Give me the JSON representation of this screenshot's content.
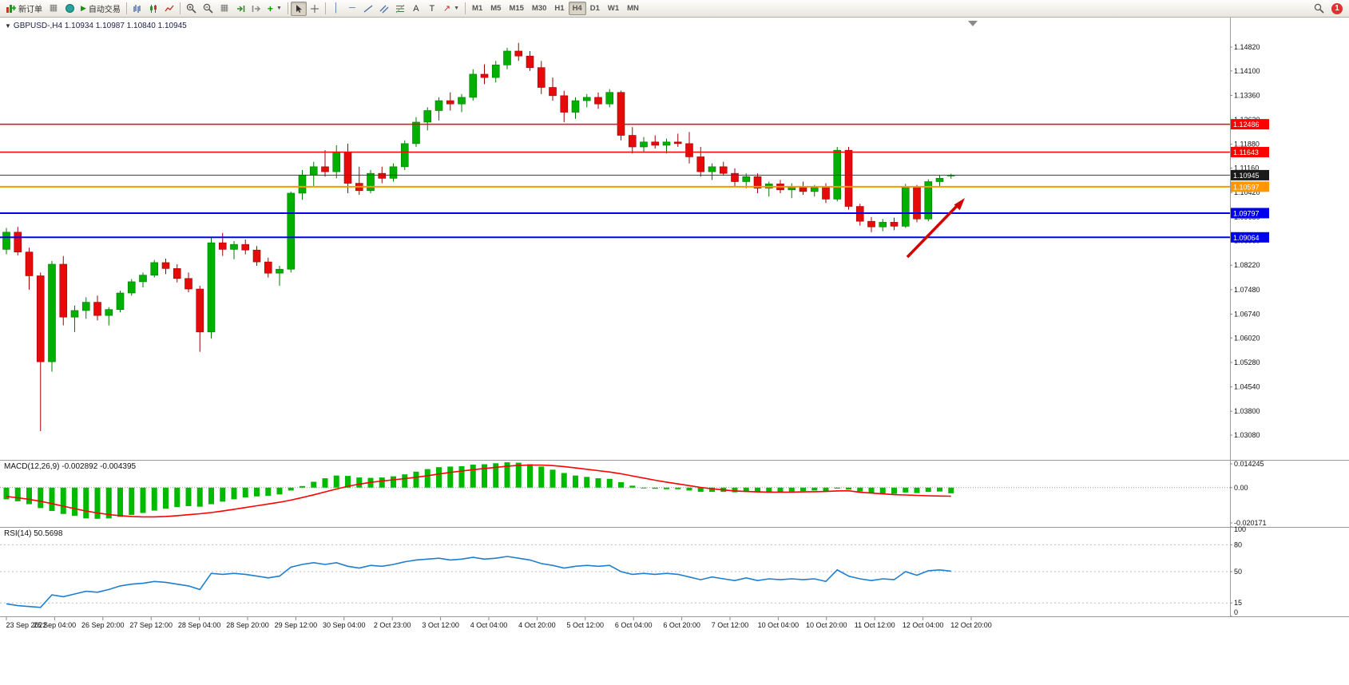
{
  "toolbar": {
    "new_order": "新订单",
    "autotrading": "自动交易",
    "timeframes": [
      "M1",
      "M5",
      "M15",
      "M30",
      "H1",
      "H4",
      "D1",
      "W1",
      "MN"
    ],
    "active_timeframe": "H4",
    "notification_count": "1"
  },
  "chart": {
    "symbol_line": "GBPUSD-,H4 1.10934 1.10987 1.10840 1.10945",
    "current_ohlc": {
      "open": "1.10934",
      "high": "1.10987",
      "low": "1.10840",
      "close": "1.10945"
    },
    "axis_prices": [
      "1.14820",
      "1.14100",
      "1.13360",
      "1.12620",
      "1.11880",
      "1.11160",
      "1.10420",
      "1.09680",
      "1.08960",
      "1.08220",
      "1.07480",
      "1.06740",
      "1.06020",
      "1.05280",
      "1.04540",
      "1.03800",
      "1.03080"
    ],
    "levels": [
      {
        "price": 1.12486,
        "label": "1.12486",
        "color": "#FF0000",
        "width": 1.5
      },
      {
        "price": 1.11643,
        "label": "1.11643",
        "color": "#FF0000",
        "width": 1.5
      },
      {
        "price": 1.10945,
        "label": "1.10945",
        "color": "#3c3c3c",
        "width": 1,
        "badge": "#1a1a1a"
      },
      {
        "price": 1.10597,
        "label": "1.10597",
        "color": "#FF9800",
        "width": 2
      },
      {
        "price": 1.09797,
        "label": "1.09797",
        "color": "#0000F0",
        "width": 2
      },
      {
        "price": 1.09064,
        "label": "1.09064",
        "color": "#0000F0",
        "width": 2
      }
    ],
    "time_labels": [
      "23 Sep 2022",
      "26 Sep 04:00",
      "26 Sep 20:00",
      "27 Sep 12:00",
      "28 Sep 04:00",
      "28 Sep 20:00",
      "29 Sep 12:00",
      "30 Sep 04:00",
      "2 Oct 23:00",
      "3 Oct 12:00",
      "4 Oct 04:00",
      "4 Oct 20:00",
      "5 Oct 12:00",
      "6 Oct 04:00",
      "6 Oct 20:00",
      "7 Oct 12:00",
      "10 Oct 04:00",
      "10 Oct 20:00",
      "11 Oct 12:00",
      "12 Oct 04:00",
      "12 Oct 20:00"
    ]
  },
  "macd": {
    "label": "MACD(12,26,9) -0.002892 -0.004395",
    "scale": [
      "0.014245",
      "0.00",
      "-0.020171"
    ]
  },
  "rsi": {
    "label": "RSI(14) 50.5698",
    "scale": [
      "100",
      "80",
      "50",
      "15",
      "0"
    ]
  },
  "annotations": {
    "red_arrow": {
      "from": [
        1136,
        322
      ],
      "to": [
        1208,
        248
      ],
      "color": "#D40000"
    }
  },
  "chart_data": [
    {
      "type": "candlestick",
      "symbol": "GBPUSD-",
      "timeframe": "H4",
      "title": "GBPUSD-,H4",
      "ylim": [
        1.02331,
        1.15569
      ],
      "current_ohlc": [
        1.10934,
        1.10987,
        1.1084,
        1.10945
      ],
      "candles": [
        [
          1.087,
          1.0935,
          1.0855,
          1.0922
        ],
        [
          1.0922,
          1.0938,
          1.0852,
          1.0862
        ],
        [
          1.0862,
          1.0875,
          1.0748,
          1.079
        ],
        [
          1.079,
          1.08,
          1.032,
          1.053
        ],
        [
          1.053,
          1.0835,
          1.05,
          1.0825
        ],
        [
          1.0825,
          1.085,
          1.064,
          1.0665
        ],
        [
          1.0665,
          1.07,
          1.062,
          1.0685
        ],
        [
          1.0685,
          1.0725,
          1.066,
          1.071
        ],
        [
          1.071,
          1.073,
          1.0655,
          1.067
        ],
        [
          1.067,
          1.0695,
          1.064,
          1.0688
        ],
        [
          1.0688,
          1.0745,
          1.068,
          1.0738
        ],
        [
          1.0738,
          1.078,
          1.073,
          1.0772
        ],
        [
          1.0772,
          1.08,
          1.0755,
          1.0792
        ],
        [
          1.0792,
          1.0838,
          1.0785,
          1.083
        ],
        [
          1.083,
          1.0842,
          1.0795,
          1.0812
        ],
        [
          1.0812,
          1.0825,
          1.077,
          1.0782
        ],
        [
          1.0782,
          1.08,
          1.074,
          1.075
        ],
        [
          1.075,
          1.076,
          1.056,
          1.062
        ],
        [
          1.062,
          1.0905,
          1.06,
          1.089
        ],
        [
          1.089,
          1.092,
          1.085,
          1.087
        ],
        [
          1.087,
          1.0895,
          1.084,
          1.0885
        ],
        [
          1.0885,
          1.09,
          1.0855,
          1.0868
        ],
        [
          1.0868,
          1.088,
          1.082,
          1.0832
        ],
        [
          1.0832,
          1.0845,
          1.0785,
          1.0798
        ],
        [
          1.0798,
          1.082,
          1.076,
          1.081
        ],
        [
          1.081,
          1.1045,
          1.08,
          1.104
        ],
        [
          1.104,
          1.111,
          1.102,
          1.1095
        ],
        [
          1.1095,
          1.1135,
          1.106,
          1.112
        ],
        [
          1.112,
          1.117,
          1.109,
          1.1105
        ],
        [
          1.1105,
          1.1185,
          1.1085,
          1.1165
        ],
        [
          1.1165,
          1.119,
          1.104,
          1.107
        ],
        [
          1.107,
          1.112,
          1.1035,
          1.1048
        ],
        [
          1.1048,
          1.111,
          1.104,
          1.11
        ],
        [
          1.11,
          1.112,
          1.107,
          1.1085
        ],
        [
          1.1085,
          1.113,
          1.1075,
          1.112
        ],
        [
          1.112,
          1.12,
          1.111,
          1.119
        ],
        [
          1.119,
          1.127,
          1.118,
          1.1255
        ],
        [
          1.1255,
          1.13,
          1.123,
          1.129
        ],
        [
          1.129,
          1.133,
          1.126,
          1.132
        ],
        [
          1.132,
          1.1345,
          1.129,
          1.131
        ],
        [
          1.131,
          1.134,
          1.1285,
          1.133
        ],
        [
          1.133,
          1.1415,
          1.132,
          1.14
        ],
        [
          1.14,
          1.143,
          1.137,
          1.139
        ],
        [
          1.139,
          1.144,
          1.1375,
          1.1428
        ],
        [
          1.1428,
          1.148,
          1.1415,
          1.147
        ],
        [
          1.147,
          1.1495,
          1.144,
          1.1455
        ],
        [
          1.1455,
          1.147,
          1.141,
          1.142
        ],
        [
          1.142,
          1.144,
          1.134,
          1.136
        ],
        [
          1.136,
          1.139,
          1.132,
          1.1335
        ],
        [
          1.1335,
          1.135,
          1.1255,
          1.1285
        ],
        [
          1.1285,
          1.133,
          1.1265,
          1.132
        ],
        [
          1.132,
          1.134,
          1.13,
          1.133
        ],
        [
          1.133,
          1.1345,
          1.1295,
          1.131
        ],
        [
          1.131,
          1.1355,
          1.13,
          1.1345
        ],
        [
          1.1345,
          1.135,
          1.12,
          1.1215
        ],
        [
          1.1215,
          1.124,
          1.116,
          1.118
        ],
        [
          1.118,
          1.121,
          1.1165,
          1.1195
        ],
        [
          1.1195,
          1.1215,
          1.1175,
          1.1185
        ],
        [
          1.1185,
          1.1205,
          1.116,
          1.1195
        ],
        [
          1.1195,
          1.122,
          1.118,
          1.119
        ],
        [
          1.119,
          1.1225,
          1.113,
          1.115
        ],
        [
          1.115,
          1.118,
          1.109,
          1.1105
        ],
        [
          1.1105,
          1.113,
          1.108,
          1.112
        ],
        [
          1.112,
          1.1135,
          1.1095,
          1.11
        ],
        [
          1.11,
          1.1115,
          1.106,
          1.1075
        ],
        [
          1.1075,
          1.11,
          1.1055,
          1.109
        ],
        [
          1.109,
          1.11,
          1.104,
          1.1055
        ],
        [
          1.1055,
          1.1075,
          1.103,
          1.1068
        ],
        [
          1.1068,
          1.108,
          1.104,
          1.105
        ],
        [
          1.105,
          1.107,
          1.1025,
          1.106
        ],
        [
          1.106,
          1.1075,
          1.1035,
          1.1045
        ],
        [
          1.1045,
          1.1065,
          1.103,
          1.1058
        ],
        [
          1.1058,
          1.107,
          1.101,
          1.1022
        ],
        [
          1.1022,
          1.118,
          1.1015,
          1.117
        ],
        [
          1.117,
          1.118,
          1.099,
          1.1
        ],
        [
          1.1,
          1.1008,
          1.0942,
          1.0955
        ],
        [
          1.0955,
          1.0968,
          1.0922,
          1.0938
        ],
        [
          1.0938,
          1.0962,
          1.0925,
          1.0952
        ],
        [
          1.0952,
          1.0966,
          1.0928,
          1.094
        ],
        [
          1.094,
          1.1068,
          1.0935,
          1.1058
        ],
        [
          1.1058,
          1.1065,
          1.0952,
          1.0962
        ],
        [
          1.0962,
          1.1082,
          1.0955,
          1.1075
        ],
        [
          1.1075,
          1.1095,
          1.1058,
          1.1085
        ],
        [
          1.10934,
          1.10987,
          1.1084,
          1.10945
        ]
      ]
    },
    {
      "type": "bar",
      "name": "MACD(12,26,9)",
      "ylim": [
        -0.020171,
        0.014245
      ],
      "current_values": [
        -0.002892,
        -0.004395
      ],
      "values": [
        -0.006,
        -0.007,
        -0.0085,
        -0.0105,
        -0.012,
        -0.0135,
        -0.0145,
        -0.0158,
        -0.016,
        -0.0158,
        -0.015,
        -0.014,
        -0.013,
        -0.0118,
        -0.0108,
        -0.01,
        -0.0095,
        -0.0098,
        -0.0085,
        -0.0072,
        -0.006,
        -0.005,
        -0.0045,
        -0.0042,
        -0.0035,
        -0.0015,
        0.0008,
        0.003,
        0.0048,
        0.0062,
        0.006,
        0.0052,
        0.005,
        0.0052,
        0.0058,
        0.0068,
        0.0082,
        0.0095,
        0.0105,
        0.0108,
        0.011,
        0.0118,
        0.012,
        0.0125,
        0.013,
        0.0128,
        0.012,
        0.0108,
        0.0092,
        0.0075,
        0.0062,
        0.0055,
        0.0048,
        0.0045,
        0.0028,
        0.001,
        0.0,
        -0.0006,
        -0.0008,
        -0.0008,
        -0.0015,
        -0.0022,
        -0.0022,
        -0.0022,
        -0.0024,
        -0.0022,
        -0.0024,
        -0.0022,
        -0.0022,
        -0.002,
        -0.0018,
        -0.0015,
        -0.0018,
        -0.0005,
        -0.001,
        -0.002,
        -0.0028,
        -0.003,
        -0.0032,
        -0.0025,
        -0.0028,
        -0.0022,
        -0.002,
        -0.0029
      ],
      "signal": [
        -0.0045,
        -0.0052,
        -0.006,
        -0.007,
        -0.0082,
        -0.0095,
        -0.0108,
        -0.012,
        -0.013,
        -0.0138,
        -0.0144,
        -0.0148,
        -0.015,
        -0.015,
        -0.0148,
        -0.0144,
        -0.0139,
        -0.0134,
        -0.0128,
        -0.012,
        -0.0111,
        -0.0102,
        -0.0093,
        -0.0084,
        -0.0075,
        -0.0064,
        -0.0051,
        -0.0037,
        -0.0022,
        -0.0007,
        0.0007,
        0.0018,
        0.0027,
        0.0034,
        0.004,
        0.0046,
        0.0053,
        0.0061,
        0.007,
        0.0078,
        0.0085,
        0.0092,
        0.0098,
        0.0104,
        0.011,
        0.0114,
        0.0116,
        0.0116,
        0.0113,
        0.0108,
        0.0101,
        0.0094,
        0.0087,
        0.008,
        0.0071,
        0.006,
        0.0049,
        0.0038,
        0.0028,
        0.0019,
        0.001,
        0.0001,
        -0.0006,
        -0.0012,
        -0.0017,
        -0.002,
        -0.0022,
        -0.0023,
        -0.0023,
        -0.0023,
        -0.0022,
        -0.0021,
        -0.002,
        -0.0017,
        -0.0016,
        -0.0024,
        -0.0028,
        -0.0032,
        -0.0036,
        -0.0038,
        -0.004,
        -0.0042,
        -0.0043,
        -0.0044
      ]
    },
    {
      "type": "line",
      "name": "RSI(14)",
      "ylim": [
        0,
        100
      ],
      "levels": [
        80,
        50,
        15
      ],
      "current_value": 50.5698,
      "values": [
        14,
        12,
        11,
        10,
        24,
        22,
        25,
        28,
        27,
        30,
        34,
        36,
        37,
        39,
        38,
        36,
        34,
        30,
        48,
        47,
        48,
        47,
        45,
        43,
        45,
        55,
        58,
        60,
        58,
        60,
        56,
        54,
        57,
        56,
        58,
        61,
        63,
        64,
        65,
        63,
        64,
        66,
        64,
        65,
        67,
        65,
        63,
        59,
        57,
        54,
        56,
        57,
        56,
        57,
        50,
        47,
        48,
        47,
        48,
        47,
        44,
        41,
        44,
        42,
        40,
        43,
        40,
        42,
        41,
        42,
        41,
        42,
        39,
        52,
        45,
        42,
        40,
        42,
        41,
        50,
        46,
        51,
        52,
        50.57
      ]
    }
  ]
}
